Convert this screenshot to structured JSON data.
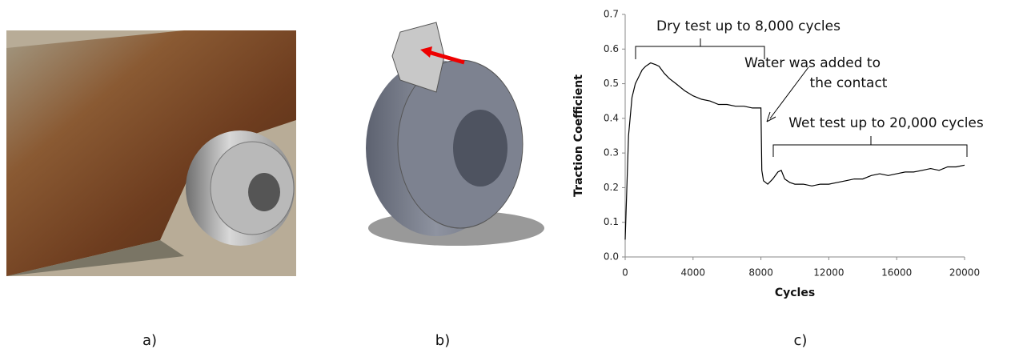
{
  "panel_labels": [
    "a)",
    "b)",
    "c)"
  ],
  "chart_data": {
    "type": "line",
    "xlabel": "Cycles",
    "ylabel": "Traction Coefficient",
    "annotations": [
      "Dry test up to 8,000 cycles",
      "Water was added to",
      "the contact",
      "Wet test up to 20,000 cycles"
    ],
    "xlim": [
      0,
      20000
    ],
    "xticks": [
      0,
      4000,
      8000,
      12000,
      16000,
      20000
    ],
    "ylim": [
      0,
      0.7
    ],
    "yticks": [
      {
        "value": 0,
        "label": "0.0"
      },
      0.1,
      0.2,
      0.3,
      0.4,
      0.5,
      0.6,
      0.7
    ],
    "grid": false,
    "series": [
      {
        "color": "#000000",
        "x": [
          0,
          100,
          200,
          400,
          600,
          800,
          1000,
          1200,
          1500,
          1800,
          2000,
          2300,
          2600,
          3000,
          3500,
          4000,
          4500,
          5000,
          5500,
          6000,
          6500,
          7000,
          7500,
          8000,
          8050,
          8150,
          8400,
          8700,
          9000,
          9200,
          9400,
          9700,
          10000,
          10500,
          11000,
          11500,
          12000,
          12500,
          13000,
          13500,
          14000,
          14500,
          15000,
          15500,
          16000,
          16500,
          17000,
          17500,
          18000,
          18500,
          19000,
          19500,
          20000
        ],
        "values": [
          0.05,
          0.2,
          0.35,
          0.46,
          0.5,
          0.52,
          0.54,
          0.55,
          0.56,
          0.555,
          0.55,
          0.53,
          0.515,
          0.5,
          0.48,
          0.465,
          0.455,
          0.45,
          0.44,
          0.44,
          0.435,
          0.435,
          0.43,
          0.43,
          0.25,
          0.22,
          0.21,
          0.225,
          0.245,
          0.25,
          0.225,
          0.215,
          0.21,
          0.21,
          0.205,
          0.21,
          0.21,
          0.215,
          0.22,
          0.225,
          0.225,
          0.235,
          0.24,
          0.235,
          0.24,
          0.245,
          0.245,
          0.25,
          0.255,
          0.25,
          0.26,
          0.26,
          0.265
        ]
      }
    ]
  }
}
